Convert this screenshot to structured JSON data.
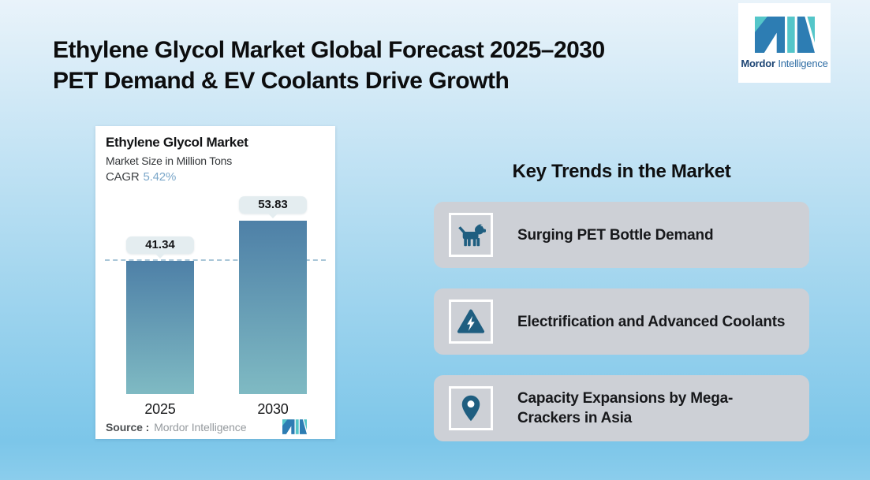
{
  "slide": {
    "title_line1": "Ethylene Glycol Market Global Forecast 2025–2030",
    "title_line2": "PET Demand & EV Coolants Drive Growth"
  },
  "brand": {
    "logo_icon": "mordor-intelligence-mark",
    "name_bold": "Mordor",
    "name_light": "Intelligence"
  },
  "chart_card": {
    "title": "Ethylene Glycol Market",
    "subtitle": "Market Size in Million Tons",
    "cagr_label": "CAGR",
    "cagr_value": "5.42%",
    "source_label": "Source :",
    "source_value": "Mordor Intelligence"
  },
  "chart_data": {
    "type": "bar",
    "title": "Ethylene Glycol Market",
    "ylabel": "Market Size in Million Tons",
    "categories": [
      "2025",
      "2030"
    ],
    "values": [
      41.34,
      53.83
    ],
    "value_labels": [
      "41.34",
      "53.83"
    ],
    "cagr_percent": 5.42,
    "ylim": [
      0,
      58
    ],
    "grid": false,
    "legend": "none",
    "reference_line": {
      "style": "dashed",
      "value": 41.34
    },
    "bar_gradient": {
      "top": "#4e80a7",
      "bottom": "#7fbac3"
    }
  },
  "trends": {
    "heading": "Key Trends in the Market",
    "items": [
      {
        "icon": "dog-icon",
        "label": "Surging PET Bottle Demand"
      },
      {
        "icon": "warning-lightning-icon",
        "label": "Electrification and Advanced Coolants"
      },
      {
        "icon": "location-pin-icon",
        "label": "Capacity Expansions by Mega-Crackers in Asia"
      }
    ]
  },
  "colors": {
    "background_top": "#e9f3fa",
    "background_bottom": "#7cc6e9",
    "brand_blue": "#2d7db3",
    "brand_teal": "#54c6c9",
    "icon_blue": "#1f5e80",
    "trend_card_bg": "#cdd0d6",
    "cagr_value_color": "#7ba7c9",
    "pill_bg": "#e4edf0"
  }
}
